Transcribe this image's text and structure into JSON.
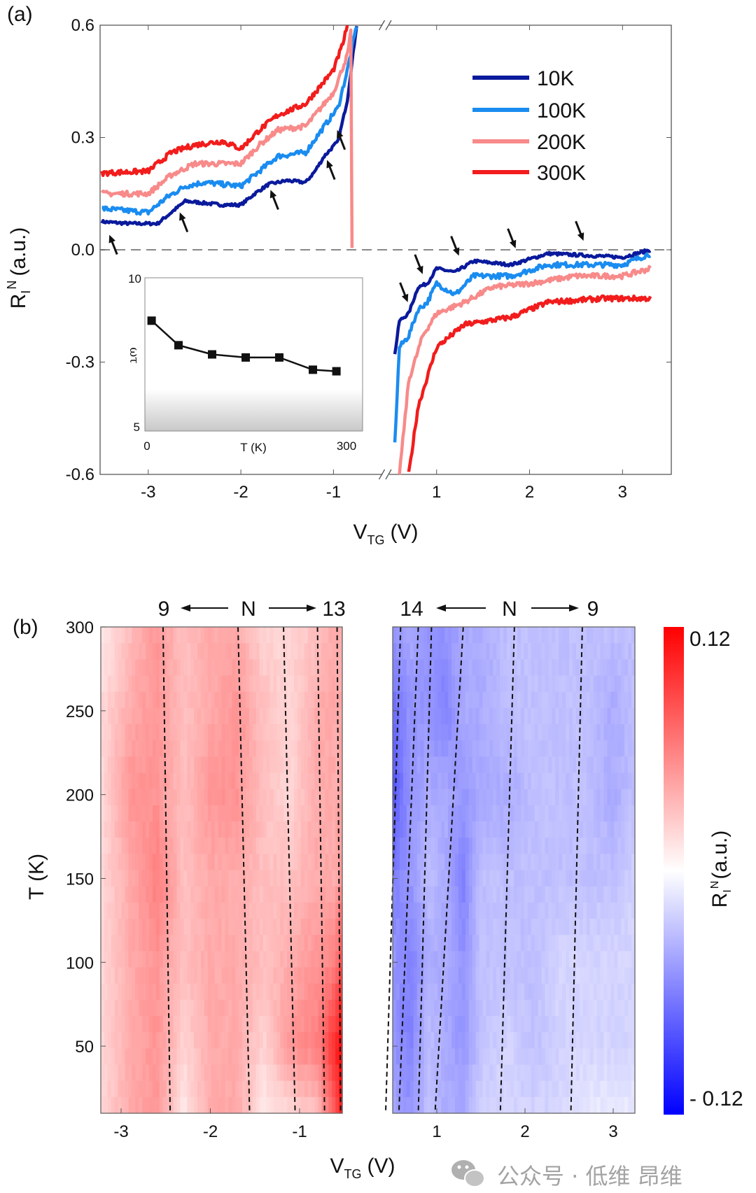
{
  "chart_data": [
    {
      "panel_label": "(a)",
      "type": "line",
      "xlabel": {
        "main": "V",
        "sub": "TG",
        "unit": "(V)"
      },
      "ylabel": {
        "main": "R",
        "sub": "I",
        "sup": "N",
        "unit": "(a.u.)"
      },
      "ylim": [
        -0.6,
        0.6
      ],
      "yticks": [
        "0.6",
        "0.3",
        "0.0",
        "-0.3",
        "-0.6"
      ],
      "ytick_values": [
        0.6,
        0.3,
        0.0,
        -0.3,
        -0.6
      ],
      "xlim_left": [
        -3.52,
        -0.47
      ],
      "xlim_right": [
        0.49,
        3.52
      ],
      "axis_break": true,
      "xticks": [
        "-3",
        "-2",
        "-1",
        "1",
        "2",
        "3"
      ],
      "xtick_values": [
        -3,
        -2,
        -1,
        1,
        2,
        3
      ],
      "zero_line": "dashed",
      "legend_position": "top-right",
      "series": [
        {
          "name": "10K",
          "color": "#0a1a9c",
          "left": [
            [
              -3.5,
              0.075
            ],
            [
              -3.2,
              0.07
            ],
            [
              -2.9,
              0.07
            ],
            [
              -2.75,
              0.1
            ],
            [
              -2.6,
              0.13
            ],
            [
              -2.4,
              0.125
            ],
            [
              -2.2,
              0.12
            ],
            [
              -2.0,
              0.12
            ],
            [
              -1.85,
              0.15
            ],
            [
              -1.7,
              0.175
            ],
            [
              -1.5,
              0.185
            ],
            [
              -1.3,
              0.18
            ],
            [
              -1.2,
              0.21
            ],
            [
              -1.1,
              0.25
            ],
            [
              -0.95,
              0.29
            ],
            [
              -0.85,
              0.4
            ],
            [
              -0.75,
              0.6
            ]
          ],
          "right": [
            [
              0.55,
              -0.28
            ],
            [
              0.6,
              -0.19
            ],
            [
              0.7,
              -0.17
            ],
            [
              0.8,
              -0.1
            ],
            [
              0.9,
              -0.09
            ],
            [
              1.0,
              -0.05
            ],
            [
              1.2,
              -0.06
            ],
            [
              1.4,
              -0.03
            ],
            [
              1.8,
              -0.04
            ],
            [
              2.2,
              -0.01
            ],
            [
              3.0,
              -0.02
            ],
            [
              3.3,
              0.0
            ]
          ]
        },
        {
          "name": "100K",
          "color": "#1a8cf0",
          "left": [
            [
              -3.5,
              0.11
            ],
            [
              -3.0,
              0.1
            ],
            [
              -2.8,
              0.14
            ],
            [
              -2.6,
              0.17
            ],
            [
              -2.4,
              0.18
            ],
            [
              -2.0,
              0.17
            ],
            [
              -1.8,
              0.21
            ],
            [
              -1.6,
              0.25
            ],
            [
              -1.3,
              0.26
            ],
            [
              -1.1,
              0.33
            ],
            [
              -0.95,
              0.38
            ],
            [
              -0.85,
              0.48
            ],
            [
              -0.75,
              0.6
            ]
          ],
          "right": [
            [
              0.55,
              -0.52
            ],
            [
              0.6,
              -0.26
            ],
            [
              0.7,
              -0.23
            ],
            [
              0.8,
              -0.16
            ],
            [
              0.9,
              -0.14
            ],
            [
              1.0,
              -0.09
            ],
            [
              1.2,
              -0.12
            ],
            [
              1.4,
              -0.07
            ],
            [
              1.8,
              -0.07
            ],
            [
              2.2,
              -0.04
            ],
            [
              3.0,
              -0.04
            ],
            [
              3.3,
              -0.01
            ]
          ]
        },
        {
          "name": "200K",
          "color": "#f88a8a",
          "left": [
            [
              -3.5,
              0.15
            ],
            [
              -3.0,
              0.15
            ],
            [
              -2.75,
              0.2
            ],
            [
              -2.5,
              0.23
            ],
            [
              -2.0,
              0.23
            ],
            [
              -1.8,
              0.28
            ],
            [
              -1.6,
              0.32
            ],
            [
              -1.3,
              0.33
            ],
            [
              -1.0,
              0.42
            ],
            [
              -0.85,
              0.52
            ],
            [
              -0.8,
              0.6
            ]
          ],
          "right": [
            [
              0.6,
              -0.6
            ],
            [
              0.7,
              -0.35
            ],
            [
              0.85,
              -0.23
            ],
            [
              1.0,
              -0.17
            ],
            [
              1.3,
              -0.14
            ],
            [
              1.6,
              -0.1
            ],
            [
              2.0,
              -0.09
            ],
            [
              2.5,
              -0.07
            ],
            [
              3.0,
              -0.07
            ],
            [
              3.3,
              -0.05
            ]
          ]
        },
        {
          "name": "300K",
          "color": "#f21c1c",
          "left": [
            [
              -3.5,
              0.205
            ],
            [
              -3.0,
              0.21
            ],
            [
              -2.75,
              0.26
            ],
            [
              -2.5,
              0.28
            ],
            [
              -2.2,
              0.29
            ],
            [
              -2.0,
              0.27
            ],
            [
              -1.8,
              0.32
            ],
            [
              -1.6,
              0.36
            ],
            [
              -1.3,
              0.39
            ],
            [
              -1.0,
              0.48
            ],
            [
              -0.9,
              0.55
            ],
            [
              -0.85,
              0.6
            ]
          ],
          "right": [
            [
              0.7,
              -0.6
            ],
            [
              0.8,
              -0.42
            ],
            [
              1.0,
              -0.26
            ],
            [
              1.3,
              -0.2
            ],
            [
              1.8,
              -0.18
            ],
            [
              2.2,
              -0.14
            ],
            [
              2.8,
              -0.13
            ],
            [
              3.3,
              -0.13
            ]
          ]
        }
      ],
      "arrows": [
        {
          "x": -3.42,
          "y": 0.04,
          "dir": "up-left"
        },
        {
          "x": -2.66,
          "y": 0.1,
          "dir": "up-left"
        },
        {
          "x": -1.68,
          "y": 0.16,
          "dir": "up-left"
        },
        {
          "x": -1.07,
          "y": 0.24,
          "dir": "up-left"
        },
        {
          "x": -0.96,
          "y": 0.32,
          "dir": "up-left"
        },
        {
          "x": 0.69,
          "y": -0.14,
          "dir": "down-right"
        },
        {
          "x": 0.85,
          "y": -0.065,
          "dir": "down-right"
        },
        {
          "x": 1.24,
          "y": -0.016,
          "dir": "down-right"
        },
        {
          "x": 1.85,
          "y": 0.004,
          "dir": "down-right"
        },
        {
          "x": 2.58,
          "y": 0.024,
          "dir": "down-right"
        }
      ],
      "inset": {
        "type": "line",
        "xlabel": "T (K)",
        "ylabel": "ωτ",
        "xlim": [
          0,
          300
        ],
        "ylim": [
          5,
          10
        ],
        "xticks": [
          "0",
          "300"
        ],
        "yticks": [
          "10",
          "5"
        ],
        "x": [
          10,
          50,
          100,
          150,
          200,
          250,
          285
        ],
        "y": [
          8.6,
          7.8,
          7.5,
          7.4,
          7.4,
          7.0,
          6.95
        ],
        "marker": "square",
        "color": "#111111"
      }
    },
    {
      "panel_label": "(b)",
      "type": "heatmap",
      "xlabel": {
        "main": "V",
        "sub": "TG",
        "unit": "(V)"
      },
      "ylabel": "T (K)",
      "ylim": [
        10,
        300
      ],
      "yticks": [
        "300",
        "250",
        "200",
        "150",
        "100",
        "50"
      ],
      "ytick_values": [
        300,
        250,
        200,
        150,
        100,
        50
      ],
      "colorbar": {
        "max_label": "0.12",
        "min_label": "- 0.12",
        "range": [
          -0.12,
          0.12
        ],
        "label": {
          "main": "R",
          "sub": "I",
          "sup": "N",
          "unit": "(a.u.)"
        },
        "colors": [
          "#0000ff",
          "#ffffff",
          "#ff0000"
        ]
      },
      "T": [
        10,
        50,
        100,
        150,
        200,
        250,
        300
      ],
      "left": {
        "xlim": [
          -3.23,
          -0.52
        ],
        "xticks": [
          "-3",
          "-2",
          "-1"
        ],
        "xtick_values": [
          -3,
          -2,
          -1
        ],
        "top_annotation": {
          "start": "9",
          "mid": "N",
          "end": "13"
        },
        "V": [
          -3.2,
          -2.9,
          -2.6,
          -2.3,
          -2.0,
          -1.7,
          -1.4,
          -1.1,
          -0.8,
          -0.6,
          -0.52
        ],
        "values": [
          [
            0.02,
            0.04,
            0.05,
            0.01,
            0.04,
            0.04,
            0.01,
            0.02,
            0.03,
            0.08,
            0.11
          ],
          [
            0.02,
            0.04,
            0.05,
            0.02,
            0.04,
            0.04,
            0.02,
            0.05,
            0.06,
            0.1,
            0.12
          ],
          [
            0.02,
            0.04,
            0.05,
            0.03,
            0.04,
            0.04,
            0.03,
            0.04,
            0.05,
            0.06,
            0.09
          ],
          [
            0.02,
            0.04,
            0.06,
            0.03,
            0.04,
            0.04,
            0.03,
            0.03,
            0.04,
            0.04,
            0.05
          ],
          [
            0.02,
            0.05,
            0.05,
            0.03,
            0.05,
            0.05,
            0.03,
            0.02,
            0.04,
            0.04,
            0.04
          ],
          [
            0.02,
            0.04,
            0.05,
            0.03,
            0.04,
            0.05,
            0.03,
            0.02,
            0.04,
            0.04,
            0.04
          ],
          [
            0.01,
            0.03,
            0.05,
            0.03,
            0.04,
            0.04,
            0.02,
            0.02,
            0.03,
            0.04,
            0.04
          ]
        ],
        "dashed_lines": [
          [
            -2.53,
            -2.45
          ],
          [
            -1.69,
            -1.56
          ],
          [
            -1.18,
            -1.05
          ],
          [
            -0.8,
            -0.72
          ],
          [
            -0.58,
            -0.54
          ]
        ]
      },
      "right": {
        "xlim": [
          0.5,
          3.25
        ],
        "xticks": [
          "1",
          "2",
          "3"
        ],
        "xtick_values": [
          1,
          2,
          3
        ],
        "top_annotation": {
          "start": "14",
          "mid": "N",
          "end": "9"
        },
        "V": [
          0.5,
          0.7,
          0.9,
          1.1,
          1.3,
          1.5,
          1.8,
          2.1,
          2.4,
          2.7,
          3.0,
          3.25
        ],
        "values": [
          [
            -0.04,
            -0.05,
            -0.03,
            -0.04,
            -0.04,
            -0.02,
            -0.02,
            -0.02,
            -0.02,
            -0.01,
            -0.01,
            -0.01
          ],
          [
            -0.05,
            -0.06,
            -0.03,
            -0.04,
            -0.05,
            -0.03,
            -0.02,
            -0.03,
            -0.02,
            -0.02,
            -0.02,
            -0.02
          ],
          [
            -0.05,
            -0.06,
            -0.04,
            -0.04,
            -0.05,
            -0.03,
            -0.03,
            -0.03,
            -0.02,
            -0.02,
            -0.02,
            -0.02
          ],
          [
            -0.06,
            -0.05,
            -0.03,
            -0.04,
            -0.06,
            -0.03,
            -0.03,
            -0.03,
            -0.03,
            -0.03,
            -0.03,
            -0.02
          ],
          [
            -0.08,
            -0.05,
            -0.04,
            -0.04,
            -0.05,
            -0.04,
            -0.04,
            -0.03,
            -0.03,
            -0.03,
            -0.04,
            -0.03
          ],
          [
            -0.07,
            -0.05,
            -0.05,
            -0.06,
            -0.04,
            -0.04,
            -0.03,
            -0.03,
            -0.03,
            -0.03,
            -0.04,
            -0.03
          ],
          [
            -0.05,
            -0.04,
            -0.05,
            -0.05,
            -0.04,
            -0.04,
            -0.03,
            -0.03,
            -0.03,
            -0.03,
            -0.03,
            -0.03
          ]
        ],
        "dashed_lines": [
          [
            0.59,
            0.42
          ],
          [
            0.79,
            0.57
          ],
          [
            0.94,
            0.79
          ],
          [
            1.3,
            0.98
          ],
          [
            1.88,
            1.72
          ],
          [
            2.65,
            2.52
          ]
        ]
      }
    }
  ],
  "watermark": {
    "text": "公众号 · 低维 昂维",
    "icon": "wechat-icon"
  }
}
